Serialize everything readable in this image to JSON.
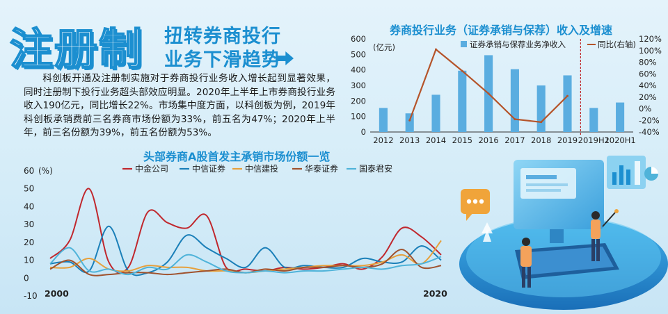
{
  "headline": {
    "main": "注册制",
    "sub_line1": "扭转券商投行",
    "sub_line2": "业务下滑趋势"
  },
  "intro_text": "科创板开通及注册制实施对于券商投行业务收入增长起到显著效果，同时注册制下投行业务超头部效应明显。2020年上半年上市券商投行业务收入190亿元，同比增长22%。市场集中度方面，以科创板为例，2019年科创板承销费前三名券商市场份额为33%，前五名为47%；2020年上半年，前三名份额为39%，前五名份额为53%。",
  "colors": {
    "brand": "#1c8fd0",
    "bar": "#5aade0",
    "line_growth": "#b5542a",
    "zhongjin": "#c0272d",
    "zhongxin": "#1a7fb8",
    "zhongxinjiantou": "#e6a03c",
    "huatai": "#a0522d",
    "guotai": "#4fb3d9"
  },
  "chart_data": [
    {
      "type": "bar",
      "title": "券商投行业务（证券承销与保荐）收入及增速",
      "categories": [
        "2012",
        "2013",
        "2014",
        "2015",
        "2016",
        "2017",
        "2018",
        "2019",
        "2019H1",
        "2020H1"
      ],
      "y_unit_label": "(亿元)",
      "ylim": [
        0,
        600
      ],
      "yticks": [
        "0",
        "100",
        "200",
        "300",
        "400",
        "500",
        "600"
      ],
      "y2ticks": [
        "-40%",
        "-20%",
        "0%",
        "20%",
        "40%",
        "60%",
        "80%",
        "100%",
        "120%"
      ],
      "y2lim": [
        -40,
        120
      ],
      "series": [
        {
          "name": "证券承销与保荐业务净收入",
          "kind": "bar",
          "values": [
            155,
            120,
            240,
            395,
            495,
            405,
            300,
            365,
            155,
            190
          ]
        },
        {
          "name": "同比(右轴)",
          "kind": "line",
          "axis": "right",
          "values": [
            null,
            -20,
            102,
            65,
            26,
            -18,
            -23,
            22,
            null,
            null
          ]
        }
      ],
      "divider_after": "2019",
      "legend_position": "top"
    },
    {
      "type": "line",
      "title": "头部券商A股首发主承销市场份额一览",
      "y_unit_label": "(%)",
      "ylim": [
        -10,
        60
      ],
      "yticks": [
        "-10",
        "0",
        "10",
        "20",
        "30",
        "40",
        "50",
        "60"
      ],
      "x_start_label": "2000",
      "x_end_label": "2020",
      "x": [
        2000,
        2001,
        2002,
        2003,
        2004,
        2005,
        2006,
        2007,
        2008,
        2009,
        2010,
        2011,
        2012,
        2013,
        2014,
        2015,
        2016,
        2017,
        2018,
        2019,
        2020
      ],
      "series": [
        {
          "name": "中金公司",
          "values": [
            11,
            21,
            50,
            9,
            6,
            37,
            31,
            28,
            35,
            6,
            5,
            4,
            6,
            5,
            6,
            8,
            5,
            12,
            28,
            23,
            13
          ]
        },
        {
          "name": "中信证券",
          "values": [
            8,
            9,
            4,
            29,
            4,
            3,
            9,
            24,
            17,
            11,
            6,
            17,
            6,
            7,
            6,
            6,
            11,
            9,
            9,
            18,
            10
          ]
        },
        {
          "name": "中信建投",
          "values": [
            6,
            6,
            11,
            5,
            4,
            7,
            6,
            6,
            4,
            4,
            3,
            4,
            5,
            6,
            7,
            7,
            7,
            9,
            13,
            8,
            21
          ]
        },
        {
          "name": "华泰证券",
          "values": [
            5,
            10,
            2,
            2,
            3,
            3,
            2,
            3,
            4,
            5,
            3,
            5,
            4,
            6,
            6,
            7,
            6,
            8,
            16,
            6,
            7
          ]
        },
        {
          "name": "国泰君安",
          "values": [
            8,
            17,
            4,
            5,
            2,
            6,
            5,
            13,
            9,
            4,
            3,
            4,
            3,
            4,
            4,
            5,
            6,
            5,
            7,
            8,
            12
          ]
        }
      ],
      "legend_position": "top"
    }
  ]
}
